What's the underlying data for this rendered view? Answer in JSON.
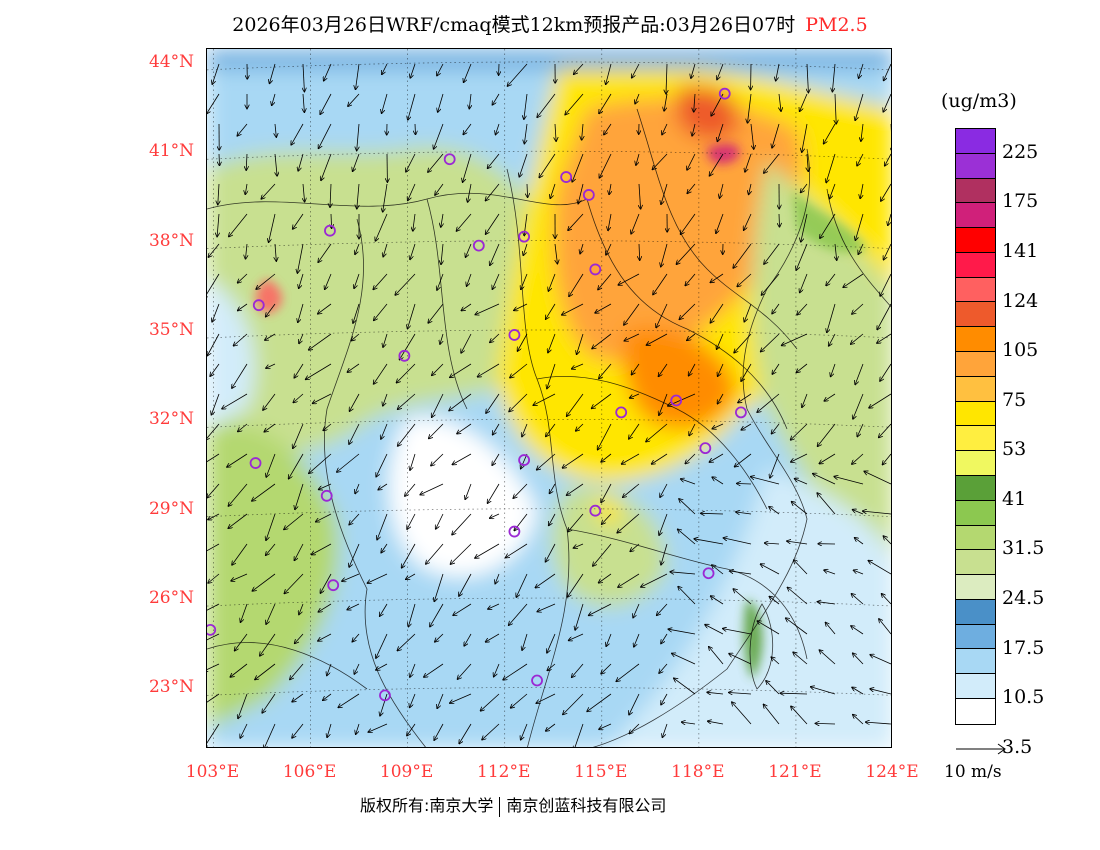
{
  "title": {
    "main": "2026年03月26日WRF/cmaq模式12km预报产品:03月26日07时",
    "species": "PM2.5"
  },
  "map": {
    "lat_labels": [
      "44°N",
      "41°N",
      "38°N",
      "35°N",
      "32°N",
      "29°N",
      "26°N",
      "23°N"
    ],
    "lon_labels": [
      "103°E",
      "106°E",
      "109°E",
      "112°E",
      "115°E",
      "118°E",
      "121°E",
      "124°E"
    ],
    "lat_range": [
      21,
      44.5
    ],
    "lon_range": [
      102.8,
      124
    ],
    "city_marker_color": "#9b28d4",
    "stations": [
      {
        "lon": 118.8,
        "lat": 43.0
      },
      {
        "lon": 110.3,
        "lat": 40.8
      },
      {
        "lon": 113.9,
        "lat": 40.2
      },
      {
        "lon": 114.6,
        "lat": 39.6
      },
      {
        "lon": 106.6,
        "lat": 38.4
      },
      {
        "lon": 111.2,
        "lat": 37.9
      },
      {
        "lon": 112.6,
        "lat": 38.2
      },
      {
        "lon": 114.8,
        "lat": 37.1
      },
      {
        "lon": 104.4,
        "lat": 35.9
      },
      {
        "lon": 112.3,
        "lat": 34.9
      },
      {
        "lon": 108.9,
        "lat": 34.2
      },
      {
        "lon": 117.3,
        "lat": 32.7
      },
      {
        "lon": 115.6,
        "lat": 32.3
      },
      {
        "lon": 119.3,
        "lat": 32.3
      },
      {
        "lon": 118.2,
        "lat": 31.1
      },
      {
        "lon": 104.3,
        "lat": 30.6
      },
      {
        "lon": 112.6,
        "lat": 30.7
      },
      {
        "lon": 106.5,
        "lat": 29.5
      },
      {
        "lon": 114.8,
        "lat": 29.0
      },
      {
        "lon": 112.3,
        "lat": 28.3
      },
      {
        "lon": 106.7,
        "lat": 26.5
      },
      {
        "lon": 118.3,
        "lat": 26.9
      },
      {
        "lon": 102.9,
        "lat": 25.0
      },
      {
        "lon": 108.3,
        "lat": 22.8
      },
      {
        "lon": 113.0,
        "lat": 23.3
      }
    ]
  },
  "legend": {
    "units": "(ug/m3)",
    "colors": [
      "#8a2be2",
      "#9b30d6",
      "#b03060",
      "#d0207a",
      "#ff0000",
      "#ff1a4a",
      "#ff6060",
      "#ee5a2c",
      "#ff8c00",
      "#ffa43a",
      "#ffc040",
      "#ffe600",
      "#ffee40",
      "#f0f860",
      "#5aa038",
      "#8cc850",
      "#b4d870",
      "#c8e090",
      "#dcecc0",
      "#4a90c8",
      "#6eaee0",
      "#a8d8f4",
      "#d2ecfa",
      "#ffffff"
    ],
    "labels": [
      "225",
      "175",
      "141",
      "124",
      "105",
      "75",
      "53",
      "41",
      "31.5",
      "24.5",
      "17.5",
      "10.5",
      "3.5"
    ],
    "vector_label": "10  m/s"
  },
  "footer": {
    "copyright": "版权所有:南京大学",
    "company": "南京创蓝科技有限公司"
  }
}
